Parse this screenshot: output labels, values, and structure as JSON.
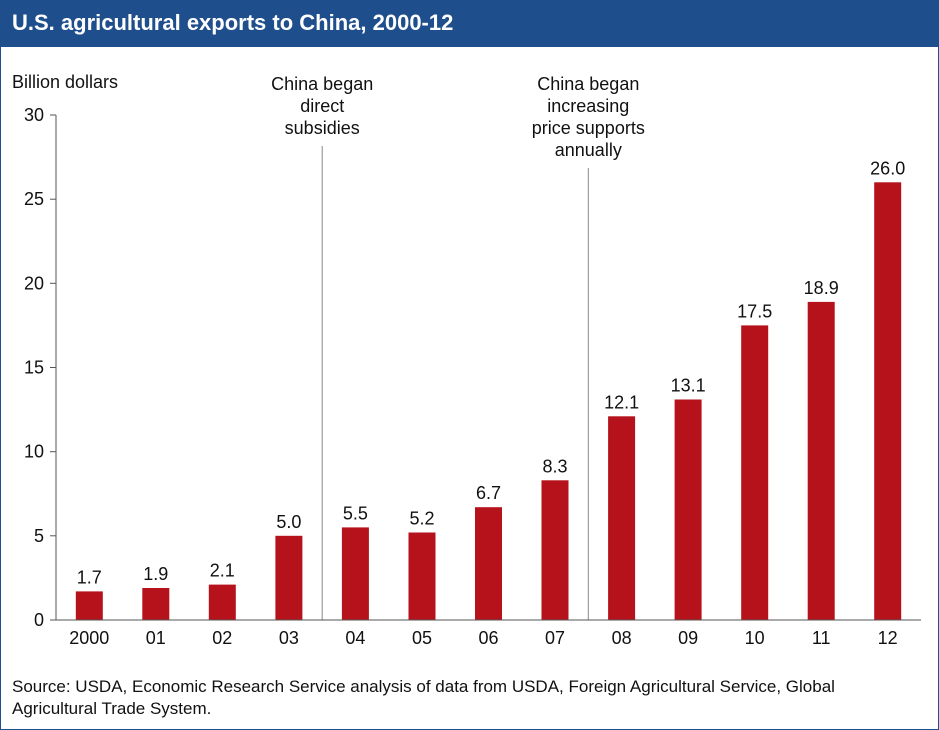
{
  "header": {
    "title": "U.S. agricultural exports to China, 2000-12"
  },
  "chart_data": {
    "type": "bar",
    "title": "U.S. agricultural exports to China, 2000-12",
    "ylabel": "Billion dollars",
    "xlabel": "",
    "categories": [
      "2000",
      "01",
      "02",
      "03",
      "04",
      "05",
      "06",
      "07",
      "08",
      "09",
      "10",
      "11",
      "12"
    ],
    "values": [
      1.7,
      1.9,
      2.1,
      5.0,
      5.5,
      5.2,
      6.7,
      8.3,
      12.1,
      13.1,
      17.5,
      18.9,
      26.0
    ],
    "value_labels": [
      "1.7",
      "1.9",
      "2.1",
      "5.0",
      "5.5",
      "5.2",
      "6.7",
      "8.3",
      "12.1",
      "13.1",
      "17.5",
      "18.9",
      "26.0"
    ],
    "ylim": [
      0,
      30
    ],
    "yticks": [
      0,
      5,
      10,
      15,
      20,
      25,
      30
    ],
    "grid": false,
    "bar_color": "#b5121b",
    "annotations": [
      {
        "after_category": "03",
        "lines": [
          "China began",
          "direct",
          "subsidies"
        ]
      },
      {
        "after_category": "07",
        "lines": [
          "China began",
          "increasing",
          "price supports",
          "annually"
        ]
      }
    ]
  },
  "footer": {
    "source": "Source: USDA, Economic Research Service analysis of data from USDA, Foreign Agricultural Service, Global Agricultural Trade System."
  },
  "colors": {
    "title_bar": "#1f4e8c",
    "title_text": "#ffffff",
    "bar": "#b5121b",
    "axis": "#555555",
    "annotation_line": "#888888"
  }
}
